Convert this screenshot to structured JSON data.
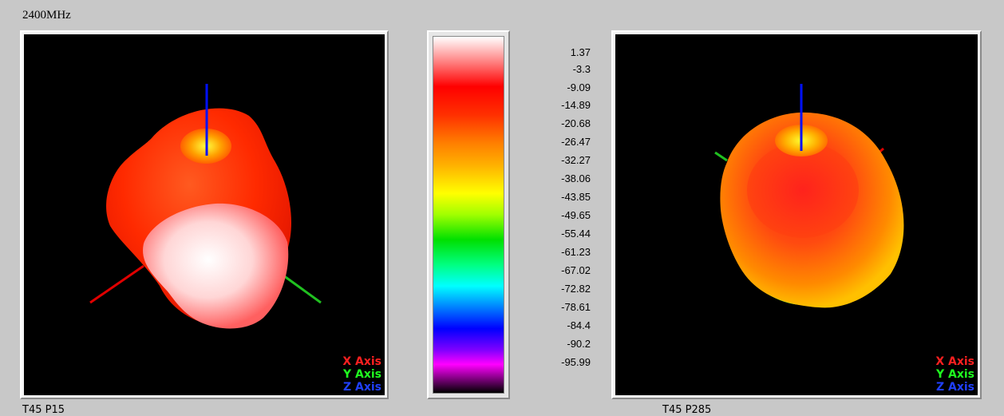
{
  "frequency_label": "2400MHz",
  "colorbar": {
    "ticks": [
      "1.37",
      "-3.3",
      "-9.09",
      "-14.89",
      "-20.68",
      "-26.47",
      "-32.27",
      "-38.06",
      "-43.85",
      "-49.65",
      "-55.44",
      "-61.23",
      "-67.02",
      "-72.82",
      "-78.61",
      "-84.4",
      "-90.2",
      "-95.99"
    ]
  },
  "left_view": {
    "legend": {
      "x": "X Axis",
      "y": "Y Axis",
      "z": "Z Axis"
    },
    "caption": "T45 P15"
  },
  "right_view": {
    "legend": {
      "x": "X Axis",
      "y": "Y Axis",
      "z": "Z Axis"
    },
    "caption": "T45 P285"
  },
  "colors": {
    "x_axis": "#ff2020",
    "y_axis": "#20ff20",
    "z_axis": "#2040ff"
  }
}
